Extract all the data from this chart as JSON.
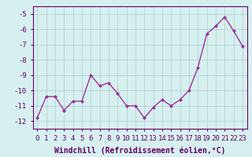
{
  "x": [
    0,
    1,
    2,
    3,
    4,
    5,
    6,
    7,
    8,
    9,
    10,
    11,
    12,
    13,
    14,
    15,
    16,
    17,
    18,
    19,
    20,
    21,
    22,
    23
  ],
  "y": [
    -11.8,
    -10.4,
    -10.4,
    -11.3,
    -10.7,
    -10.7,
    -9.0,
    -9.7,
    -9.5,
    -10.2,
    -11.0,
    -11.0,
    -11.8,
    -11.1,
    -10.6,
    -11.0,
    -10.6,
    -10.0,
    -8.5,
    -6.3,
    -5.8,
    -5.2,
    -6.1,
    -7.1
  ],
  "line_color": "#993399",
  "marker": "D",
  "marker_size": 2,
  "line_width": 1.0,
  "xlabel": "Windchill (Refroidissement éolien,°C)",
  "xlabel_fontsize": 7,
  "ylim": [
    -12.5,
    -4.5
  ],
  "xlim": [
    -0.5,
    23.5
  ],
  "yticks": [
    -5,
    -6,
    -7,
    -8,
    -9,
    -10,
    -11,
    -12
  ],
  "xticks": [
    0,
    1,
    2,
    3,
    4,
    5,
    6,
    7,
    8,
    9,
    10,
    11,
    12,
    13,
    14,
    15,
    16,
    17,
    18,
    19,
    20,
    21,
    22,
    23
  ],
  "background_color": "#d6f0f0",
  "grid_color": "#b0c8c8",
  "tick_fontsize": 6.5,
  "text_color": "#660066",
  "figure_bg": "#d6f0f0"
}
